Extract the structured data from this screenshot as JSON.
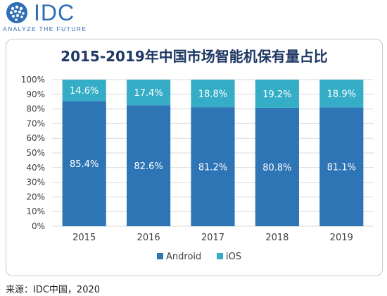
{
  "logo": {
    "name": "IDC",
    "tagline": "ANALYZE THE FUTURE"
  },
  "source": "来源：IDC中国，2020",
  "colors": {
    "android": "#2e75b6",
    "ios": "#36adc7",
    "title": "#1f3864",
    "logo": "#2d6eb4"
  },
  "chart_data": {
    "type": "bar",
    "stacked": true,
    "percent": true,
    "title": "2015-2019年中国市场智能机保有量占比",
    "xlabel": "",
    "ylabel": "",
    "categories": [
      "2015",
      "2016",
      "2017",
      "2018",
      "2019"
    ],
    "series": [
      {
        "name": "Android",
        "values": [
          85.4,
          82.6,
          81.2,
          80.8,
          81.1
        ],
        "labels": [
          "85.4%",
          "82.6%",
          "81.2%",
          "80.8%",
          "81.1%"
        ]
      },
      {
        "name": "iOS",
        "values": [
          14.6,
          17.4,
          18.8,
          19.2,
          18.9
        ],
        "labels": [
          "14.6%",
          "17.4%",
          "18.8%",
          "19.2%",
          "18.9%"
        ]
      }
    ],
    "ylim": [
      0,
      100
    ],
    "yticks": [
      "0%",
      "10%",
      "20%",
      "30%",
      "40%",
      "50%",
      "60%",
      "70%",
      "80%",
      "90%",
      "100%"
    ],
    "grid": true,
    "legend": "bottom"
  }
}
